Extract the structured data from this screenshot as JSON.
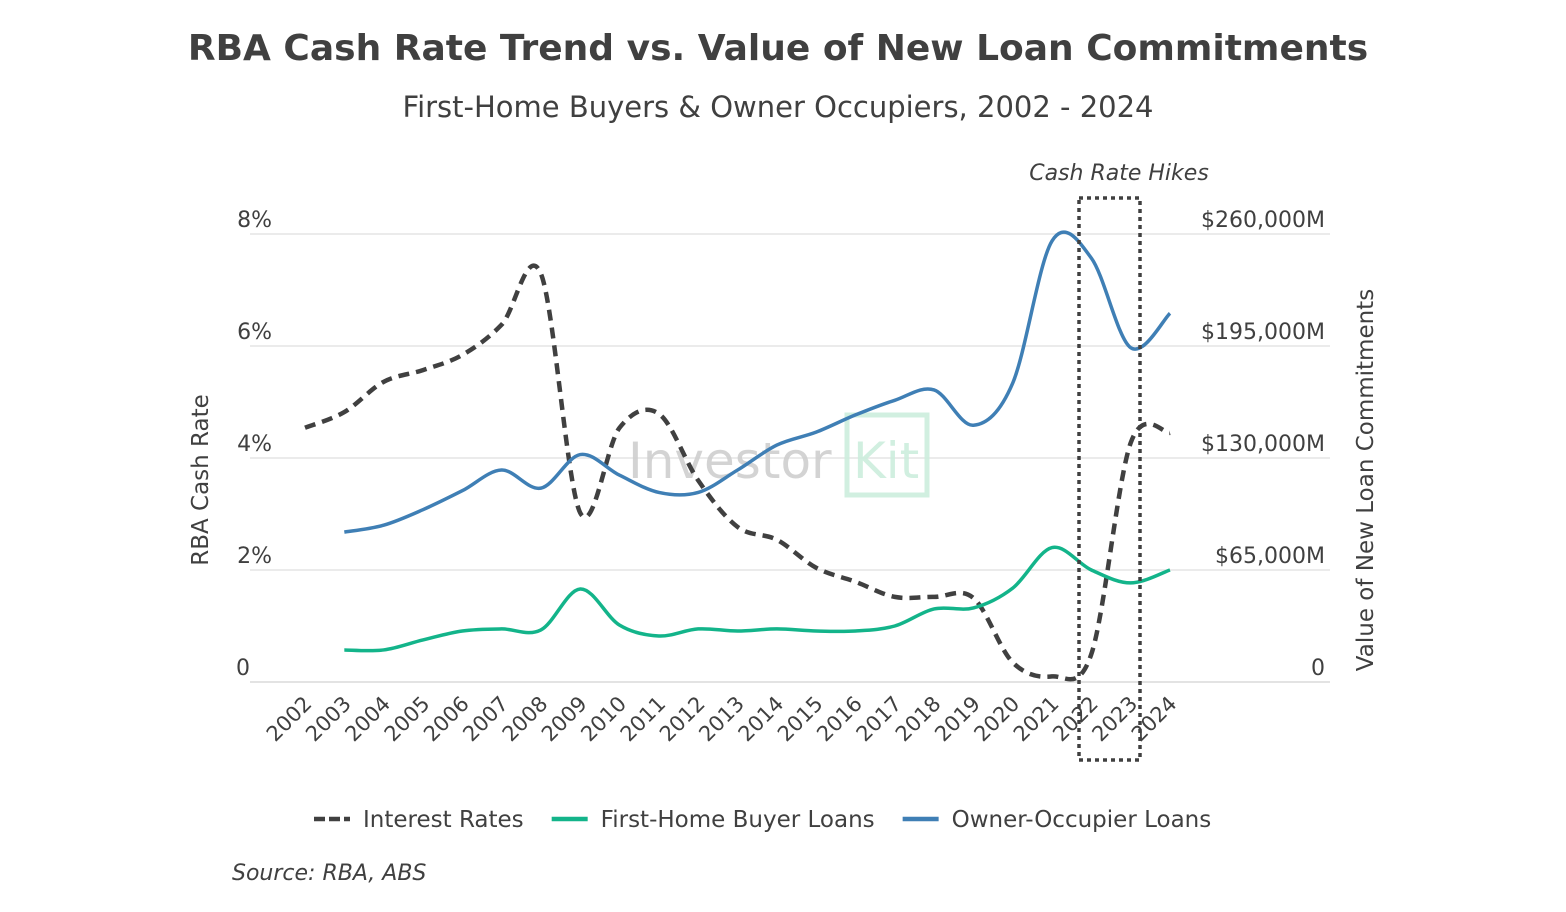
{
  "chart_data": {
    "type": "line",
    "title": "RBA Cash Rate Trend vs. Value of New Loan Commitments",
    "subtitle": "First-Home Buyers & Owner Occupiers, 2002 - 2024",
    "ylabel_left": "RBA Cash Rate",
    "ylabel_right": "Value of New Loan Commitments",
    "y_left_range": [
      0,
      8
    ],
    "y_right_range": [
      0,
      260000
    ],
    "y_left_ticks": [
      "0",
      "2%",
      "4%",
      "6%",
      "8%"
    ],
    "y_right_ticks": [
      "0",
      "$65,000M",
      "$130,000M",
      "$195,000M",
      "$260,000M"
    ],
    "grid": true,
    "legend_position": "bottom",
    "x": [
      "2002",
      "2003",
      "2004",
      "2005",
      "2006",
      "2007",
      "2008",
      "2009",
      "2010",
      "2011",
      "2012",
      "2013",
      "2014",
      "2015",
      "2016",
      "2017",
      "2018",
      "2019",
      "2020",
      "2021",
      "2022",
      "2023",
      "2024"
    ],
    "series": [
      {
        "name": "Interest Rates",
        "axis": "left",
        "color": "#404040",
        "style": "dashed",
        "values": [
          4.54,
          4.82,
          5.36,
          5.57,
          5.84,
          6.38,
          7.29,
          3.02,
          4.54,
          4.79,
          3.6,
          2.77,
          2.54,
          2.04,
          1.79,
          1.52,
          1.52,
          1.5,
          0.35,
          0.1,
          0.5,
          4.27,
          4.45
        ]
      },
      {
        "name": "First-Home Buyer Loans",
        "axis": "right",
        "color": "#13b48a",
        "style": "solid",
        "values": [
          null,
          18600,
          18600,
          24400,
          29600,
          30800,
          30200,
          54000,
          33000,
          26700,
          30800,
          29600,
          30800,
          29600,
          29600,
          32500,
          42400,
          43000,
          54500,
          78000,
          65000,
          57500,
          65000
        ]
      },
      {
        "name": "Owner-Occupier Loans",
        "axis": "right",
        "color": "#3f7fb5",
        "style": "solid",
        "values": [
          null,
          87000,
          91000,
          100000,
          111000,
          123000,
          112500,
          132000,
          120000,
          110000,
          110000,
          123000,
          137500,
          145000,
          155000,
          163500,
          169500,
          149000,
          173500,
          256000,
          246000,
          194000,
          214000
        ]
      }
    ],
    "annotation": "Cash Rate Hikes",
    "source": "Source: RBA, ABS",
    "watermark": "Investor Kit"
  }
}
